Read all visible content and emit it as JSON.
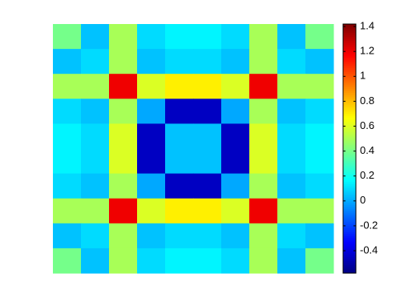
{
  "chart_data": {
    "type": "heatmap",
    "colormap": "jet",
    "z": [
      [
        0.4,
        0.05,
        0.5,
        0.1,
        0.15,
        0.15,
        0.1,
        0.5,
        0.05,
        0.4
      ],
      [
        0.05,
        0.1,
        0.5,
        0.05,
        0.1,
        0.1,
        0.05,
        0.5,
        0.1,
        0.05
      ],
      [
        0.5,
        0.5,
        1.2,
        0.6,
        0.7,
        0.7,
        0.6,
        1.2,
        0.5,
        0.5
      ],
      [
        0.1,
        0.05,
        0.5,
        0.0,
        -0.45,
        -0.45,
        0.0,
        0.5,
        0.05,
        0.1
      ],
      [
        0.15,
        0.1,
        0.6,
        -0.45,
        0.05,
        0.05,
        -0.45,
        0.6,
        0.1,
        0.15
      ],
      [
        0.15,
        0.1,
        0.6,
        -0.45,
        0.05,
        0.05,
        -0.45,
        0.6,
        0.1,
        0.15
      ],
      [
        0.1,
        0.05,
        0.5,
        0.0,
        -0.45,
        -0.45,
        0.0,
        0.5,
        0.05,
        0.1
      ],
      [
        0.5,
        0.5,
        1.2,
        0.6,
        0.7,
        0.7,
        0.6,
        1.2,
        0.5,
        0.5
      ],
      [
        0.05,
        0.1,
        0.5,
        0.05,
        0.1,
        0.1,
        0.05,
        0.5,
        0.1,
        0.05
      ],
      [
        0.4,
        0.05,
        0.5,
        0.1,
        0.15,
        0.15,
        0.1,
        0.5,
        0.05,
        0.4
      ]
    ],
    "clim": [
      -0.58,
      1.42
    ],
    "cticks": [
      -0.4,
      -0.2,
      0,
      0.2,
      0.4,
      0.6,
      0.8,
      1,
      1.2,
      1.4
    ]
  }
}
